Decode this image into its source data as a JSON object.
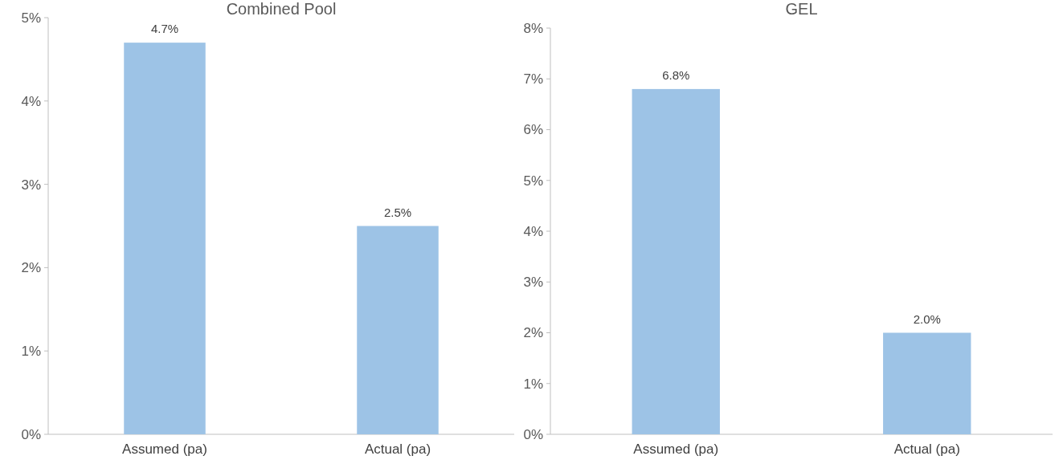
{
  "chart_data": [
    {
      "type": "bar",
      "title": "Combined Pool",
      "categories": [
        "Assumed (pa)",
        "Actual (pa)"
      ],
      "values": [
        4.7,
        2.5
      ],
      "color": "#9dc3e6",
      "value_labels": [
        "4.7%",
        "2.5%"
      ],
      "ylim": [
        0,
        5
      ],
      "yticks": [
        {
          "value": 0,
          "label": "0%"
        },
        {
          "value": 1,
          "label": "1%"
        },
        {
          "value": 2,
          "label": "2%"
        },
        {
          "value": 3,
          "label": "3%"
        },
        {
          "value": 4,
          "label": "4%"
        },
        {
          "value": 5,
          "label": "5%"
        }
      ],
      "grid": false
    },
    {
      "type": "bar",
      "title": "GEL",
      "categories": [
        "Assumed (pa)",
        "Actual (pa)"
      ],
      "values": [
        6.8,
        2.0
      ],
      "color": "#9dc3e6",
      "value_labels": [
        "6.8%",
        "2.0%"
      ],
      "ylim": [
        0,
        8
      ],
      "yticks": [
        {
          "value": 0,
          "label": "0%"
        },
        {
          "value": 1,
          "label": "1%"
        },
        {
          "value": 2,
          "label": "2%"
        },
        {
          "value": 3,
          "label": "3%"
        },
        {
          "value": 4,
          "label": "4%"
        },
        {
          "value": 5,
          "label": "5%"
        },
        {
          "value": 6,
          "label": "6%"
        },
        {
          "value": 7,
          "label": "7%"
        },
        {
          "value": 8,
          "label": "8%"
        }
      ],
      "grid": false
    }
  ]
}
